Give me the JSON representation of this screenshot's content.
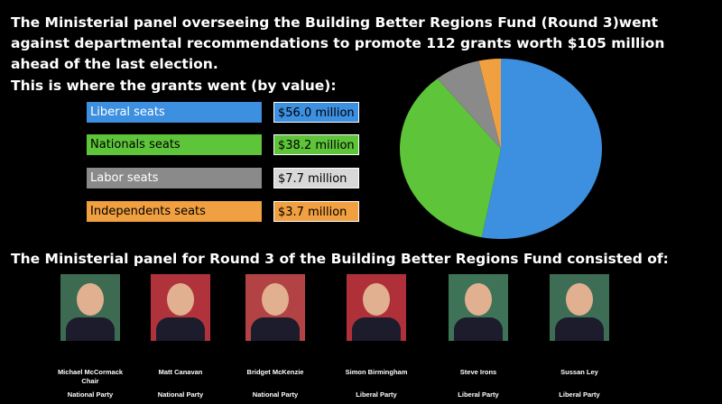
{
  "headline": "The Ministerial panel overseeing the Building Better Regions Fund (Round 3)went against departmental recommendations to promote 112 grants worth $105 million ahead of the last election.",
  "subheading": "This is where the grants went (by value):",
  "chart_data": {
    "type": "pie",
    "categories": [
      "Liberal seats",
      "Nationals seats",
      "Labor seats",
      "Independents seats"
    ],
    "values": [
      56.0,
      38.2,
      7.7,
      3.7
    ],
    "value_labels": [
      "$56.0 million",
      "$38.2 million",
      "$7.7 million",
      "$3.7 million"
    ],
    "colors": [
      "#3d8fe0",
      "#5ec43a",
      "#8a8a8a",
      "#f0a040"
    ],
    "title": "",
    "legend_placement": "left"
  },
  "panel_title": "The Ministerial panel for Round 3 of the Building Better Regions Fund consisted of:",
  "members": [
    {
      "name": "Michael McCormack",
      "role": "Chair",
      "party": "National Party",
      "bg": "#3d6b52"
    },
    {
      "name": "Matt Canavan",
      "role": "",
      "party": "National Party",
      "bg": "#b0333c"
    },
    {
      "name": "Bridget McKenzie",
      "role": "",
      "party": "National Party",
      "bg": "#b34244"
    },
    {
      "name": "Simon Birmingham",
      "role": "",
      "party": "Liberal Party",
      "bg": "#b0303a"
    },
    {
      "name": "Steve Irons",
      "role": "",
      "party": "Liberal Party",
      "bg": "#3f7358"
    },
    {
      "name": "Sussan Ley",
      "role": "",
      "party": "Liberal Party",
      "bg": "#3d6d55"
    }
  ]
}
